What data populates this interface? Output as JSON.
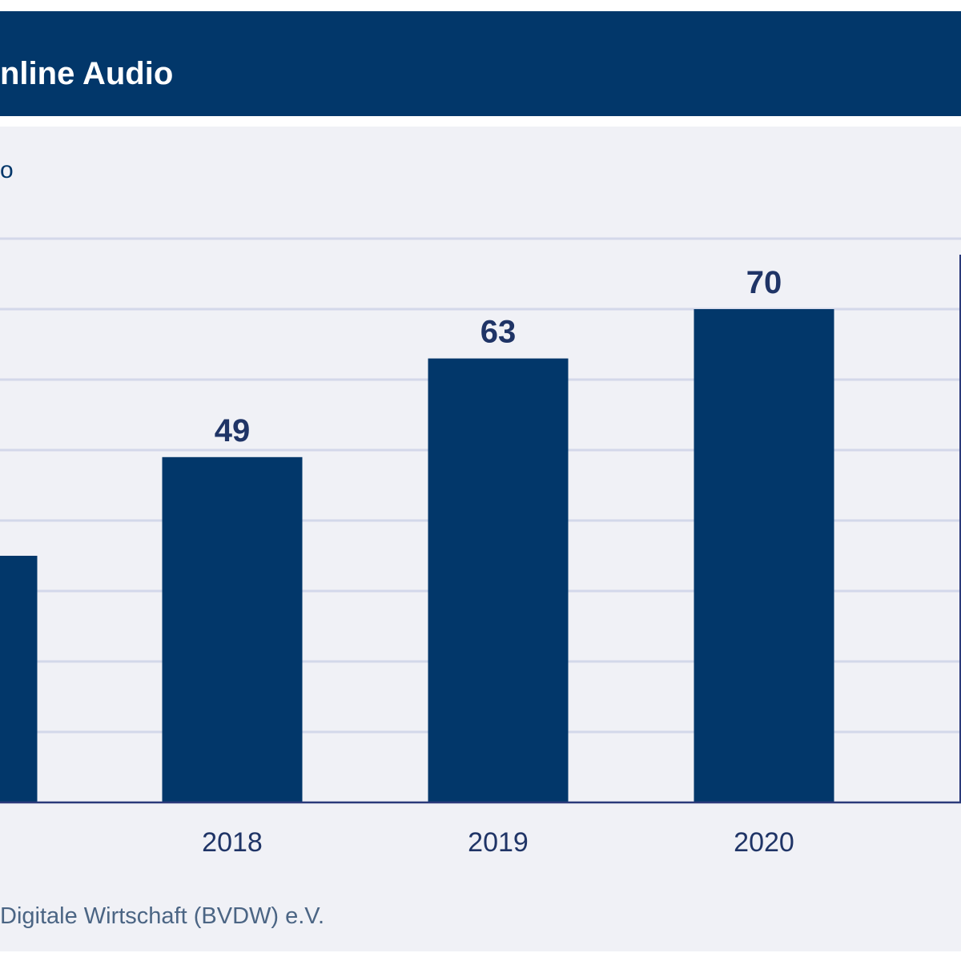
{
  "header": {
    "title": "nline Audio"
  },
  "subtitle": "o",
  "source": "Digitale Wirtschaft (BVDW) e.V.",
  "colors": {
    "header_bg": "#02376a",
    "bar": "#02376a",
    "panel_bg": "#f0f1f6",
    "grid": "#d3d8ea",
    "axis": "#2b3a7a",
    "label": "#1f3466"
  },
  "chart_data": {
    "type": "bar",
    "categories": [
      "",
      "2018",
      "2019",
      "2020"
    ],
    "values": [
      35,
      49,
      63,
      70
    ],
    "data_labels": [
      "",
      "49",
      "63",
      "70"
    ],
    "ylim": [
      0,
      80
    ],
    "grid": true,
    "xlabel": "",
    "ylabel": ""
  }
}
